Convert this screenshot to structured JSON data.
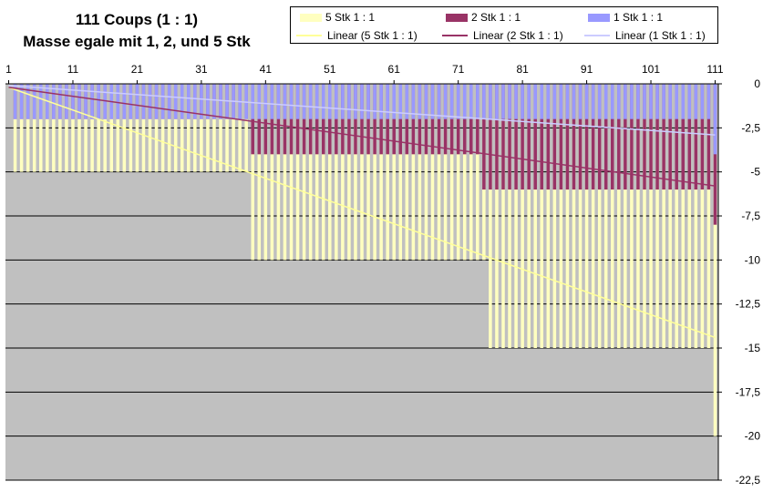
{
  "chart_data": {
    "type": "bar",
    "title": "111 Coups (1 : 1)",
    "subtitle": "Masse egale mit 1, 2, und 5 Stk",
    "x_tick_labels": [
      "1",
      "11",
      "21",
      "31",
      "41",
      "51",
      "61",
      "71",
      "81",
      "91",
      "101",
      "111"
    ],
    "x_range": [
      1,
      111
    ],
    "ylim": [
      -22.5,
      0
    ],
    "y_ticks": [
      0,
      -2.5,
      -5,
      -7.5,
      -10,
      -12.5,
      -15,
      -17.5,
      -20,
      -22.5
    ],
    "y_tick_labels": [
      "0",
      "-2,5",
      "-5",
      "-7,5",
      "-10",
      "-12,5",
      "-15",
      "-17,5",
      "-20",
      "-22,5"
    ],
    "grid": true,
    "legend_position": "top",
    "plot_background": "#c0c0c0",
    "series": [
      {
        "name": "5 Stk 1 : 1",
        "color": "#ffffc0",
        "segments": [
          {
            "from": 1,
            "to": 1,
            "value": 0
          },
          {
            "from": 2,
            "to": 38,
            "value": -5
          },
          {
            "from": 39,
            "to": 75,
            "value": -10
          },
          {
            "from": 76,
            "to": 110,
            "value": -15
          },
          {
            "from": 111,
            "to": 111,
            "value": -20
          }
        ]
      },
      {
        "name": "2 Stk 1 : 1",
        "color": "#993366",
        "segments": [
          {
            "from": 1,
            "to": 1,
            "value": 0
          },
          {
            "from": 2,
            "to": 38,
            "value": -2
          },
          {
            "from": 39,
            "to": 74,
            "value": -4
          },
          {
            "from": 75,
            "to": 110,
            "value": -6
          },
          {
            "from": 111,
            "to": 111,
            "value": -8
          }
        ]
      },
      {
        "name": "1 Stk 1 : 1",
        "color": "#9999ff",
        "segments": [
          {
            "from": 1,
            "to": 1,
            "value": 0
          },
          {
            "from": 2,
            "to": 110,
            "value": -2
          },
          {
            "from": 111,
            "to": 111,
            "value": -4
          }
        ]
      }
    ],
    "trendlines": [
      {
        "name": "Linear (5 Stk 1 : 1)",
        "color": "#ffff99",
        "from": [
          1,
          -0.2
        ],
        "to": [
          111,
          -14.4
        ]
      },
      {
        "name": "Linear (2 Stk 1 : 1)",
        "color": "#993366",
        "from": [
          1,
          -0.2
        ],
        "to": [
          111,
          -5.8
        ]
      },
      {
        "name": "Linear (1 Stk 1 : 1)",
        "color": "#ccccff",
        "from": [
          1,
          -0.1
        ],
        "to": [
          111,
          -2.9
        ]
      }
    ]
  }
}
